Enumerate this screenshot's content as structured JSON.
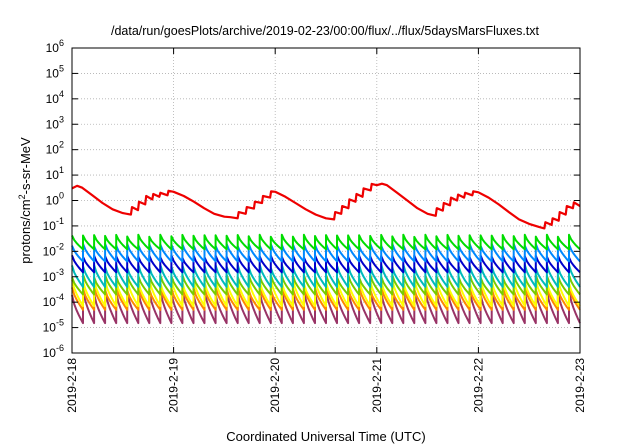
{
  "chart_data": {
    "type": "line",
    "title": "/data/run/goesPlots/archive/2019-02-23/00:00/flux/../flux/5daysMarsFluxes.txt",
    "xlabel": "Coordinated Universal Time (UTC)",
    "ylabel": {
      "prefix": "protons/cm",
      "superscript": "2",
      "suffix": "-s-sr-MeV"
    },
    "y_scale": "log",
    "ylim": [
      1e-06,
      1000000.0
    ],
    "xlim": [
      "2019-02-18",
      "2019-02-23"
    ],
    "y_tick_labels": [
      {
        "base": "10",
        "exp": "-6"
      },
      {
        "base": "10",
        "exp": "-5"
      },
      {
        "base": "10",
        "exp": "-4"
      },
      {
        "base": "10",
        "exp": "-3"
      },
      {
        "base": "10",
        "exp": "-2"
      },
      {
        "base": "10",
        "exp": "-1"
      },
      {
        "base": "10",
        "exp": "0"
      },
      {
        "base": "10",
        "exp": "1"
      },
      {
        "base": "10",
        "exp": "2"
      },
      {
        "base": "10",
        "exp": "3"
      },
      {
        "base": "10",
        "exp": "4"
      },
      {
        "base": "10",
        "exp": "5"
      },
      {
        "base": "10",
        "exp": "6"
      }
    ],
    "x_tick_labels": [
      "2019-2-18",
      "2019-2-19",
      "2019-2-20",
      "2019-2-21",
      "2019-2-22",
      "2019-2-23"
    ],
    "grid": true,
    "legend": "none",
    "series": [
      {
        "color": "#ee0000",
        "x": [
          "2019-02-18T00:00",
          "2019-02-18T01:12",
          "2019-02-18T02:24",
          "2019-02-18T04:48",
          "2019-02-18T07:12",
          "2019-02-18T09:36",
          "2019-02-18T12:00",
          "2019-02-18T13:55",
          "2019-02-18T14:10",
          "2019-02-18T15:36",
          "2019-02-18T15:50",
          "2019-02-18T17:17",
          "2019-02-18T17:31",
          "2019-02-18T18:58",
          "2019-02-18T19:12",
          "2019-02-18T20:38",
          "2019-02-18T20:53",
          "2019-02-18T22:34",
          "2019-02-18T22:48",
          "2019-02-19T00:00",
          "2019-02-19T02:24",
          "2019-02-19T04:48",
          "2019-02-19T07:12",
          "2019-02-19T09:36",
          "2019-02-19T12:00",
          "2019-02-19T13:26",
          "2019-02-19T15:07",
          "2019-02-19T15:22",
          "2019-02-19T17:02",
          "2019-02-19T17:17",
          "2019-02-19T18:58",
          "2019-02-19T19:12",
          "2019-02-19T20:53",
          "2019-02-19T21:07",
          "2019-02-19T22:48",
          "2019-02-19T23:02",
          "2019-02-20T00:00",
          "2019-02-20T02:24",
          "2019-02-20T04:48",
          "2019-02-20T07:12",
          "2019-02-20T09:36",
          "2019-02-20T12:00",
          "2019-02-20T13:55",
          "2019-02-20T14:10",
          "2019-02-20T15:36",
          "2019-02-20T15:50",
          "2019-02-20T17:17",
          "2019-02-20T17:31",
          "2019-02-20T18:58",
          "2019-02-20T19:12",
          "2019-02-20T20:38",
          "2019-02-20T20:53",
          "2019-02-20T22:34",
          "2019-02-20T22:48",
          "2019-02-21T00:00",
          "2019-02-21T01:12",
          "2019-02-21T02:24",
          "2019-02-21T04:48",
          "2019-02-21T07:12",
          "2019-02-21T09:36",
          "2019-02-21T12:00",
          "2019-02-21T13:55",
          "2019-02-21T14:10",
          "2019-02-21T15:36",
          "2019-02-21T15:50",
          "2019-02-21T17:17",
          "2019-02-21T17:31",
          "2019-02-21T18:58",
          "2019-02-21T19:12",
          "2019-02-21T20:38",
          "2019-02-21T20:53",
          "2019-02-21T22:34",
          "2019-02-21T22:48",
          "2019-02-22T00:00",
          "2019-02-22T02:24",
          "2019-02-22T04:48",
          "2019-02-22T07:12",
          "2019-02-22T09:36",
          "2019-02-22T12:00",
          "2019-02-22T14:24",
          "2019-02-22T15:36",
          "2019-02-22T15:50",
          "2019-02-22T17:17",
          "2019-02-22T17:31",
          "2019-02-22T18:58",
          "2019-02-22T19:12",
          "2019-02-22T20:38",
          "2019-02-22T20:53",
          "2019-02-22T22:19",
          "2019-02-22T22:34",
          "2019-02-23T00:00"
        ],
        "y": [
          3.0,
          3.8,
          3.2,
          1.6,
          0.8,
          0.45,
          0.32,
          0.28,
          0.55,
          0.42,
          0.9,
          0.7,
          1.5,
          1.1,
          1.8,
          1.4,
          2.0,
          1.6,
          2.4,
          2.2,
          1.5,
          0.9,
          0.5,
          0.3,
          0.23,
          0.22,
          0.2,
          0.35,
          0.3,
          0.55,
          0.48,
          0.9,
          0.8,
          1.5,
          1.3,
          2.3,
          2.2,
          1.4,
          0.8,
          0.45,
          0.28,
          0.2,
          0.18,
          0.35,
          0.3,
          0.6,
          0.5,
          1.1,
          0.9,
          1.8,
          1.4,
          3.0,
          2.5,
          4.5,
          4.0,
          4.6,
          4.0,
          2.0,
          1.0,
          0.5,
          0.3,
          0.25,
          0.5,
          0.4,
          0.8,
          0.65,
          1.3,
          1.0,
          1.7,
          1.3,
          2.0,
          1.6,
          2.3,
          2.1,
          1.3,
          0.7,
          0.35,
          0.18,
          0.12,
          0.09,
          0.08,
          0.14,
          0.11,
          0.2,
          0.16,
          0.35,
          0.28,
          0.6,
          0.5,
          0.85,
          0.6
        ]
      }
    ],
    "periodic_series": [
      {
        "color": "#00dd00",
        "low": 0.012,
        "high": 0.045,
        "phase": 0.0
      },
      {
        "color": "#0088ff",
        "low": 0.004,
        "high": 0.02,
        "phase": 0.1
      },
      {
        "color": "#0000cc",
        "low": 0.0015,
        "high": 0.007,
        "phase": 0.2
      },
      {
        "color": "#00bbbb",
        "low": 0.0004,
        "high": 0.003,
        "phase": 0.3
      },
      {
        "color": "#77cc00",
        "low": 0.0002,
        "high": 0.0012,
        "phase": 0.35
      },
      {
        "color": "#ffff00",
        "low": 7e-05,
        "high": 0.0008,
        "phase": 0.4
      },
      {
        "color": "#ff8800",
        "low": 5e-05,
        "high": 0.0004,
        "phase": 0.45
      },
      {
        "color": "#993366",
        "low": 1.5e-05,
        "high": 0.0003,
        "phase": 0.5
      }
    ],
    "periodic_cycles": 46
  }
}
